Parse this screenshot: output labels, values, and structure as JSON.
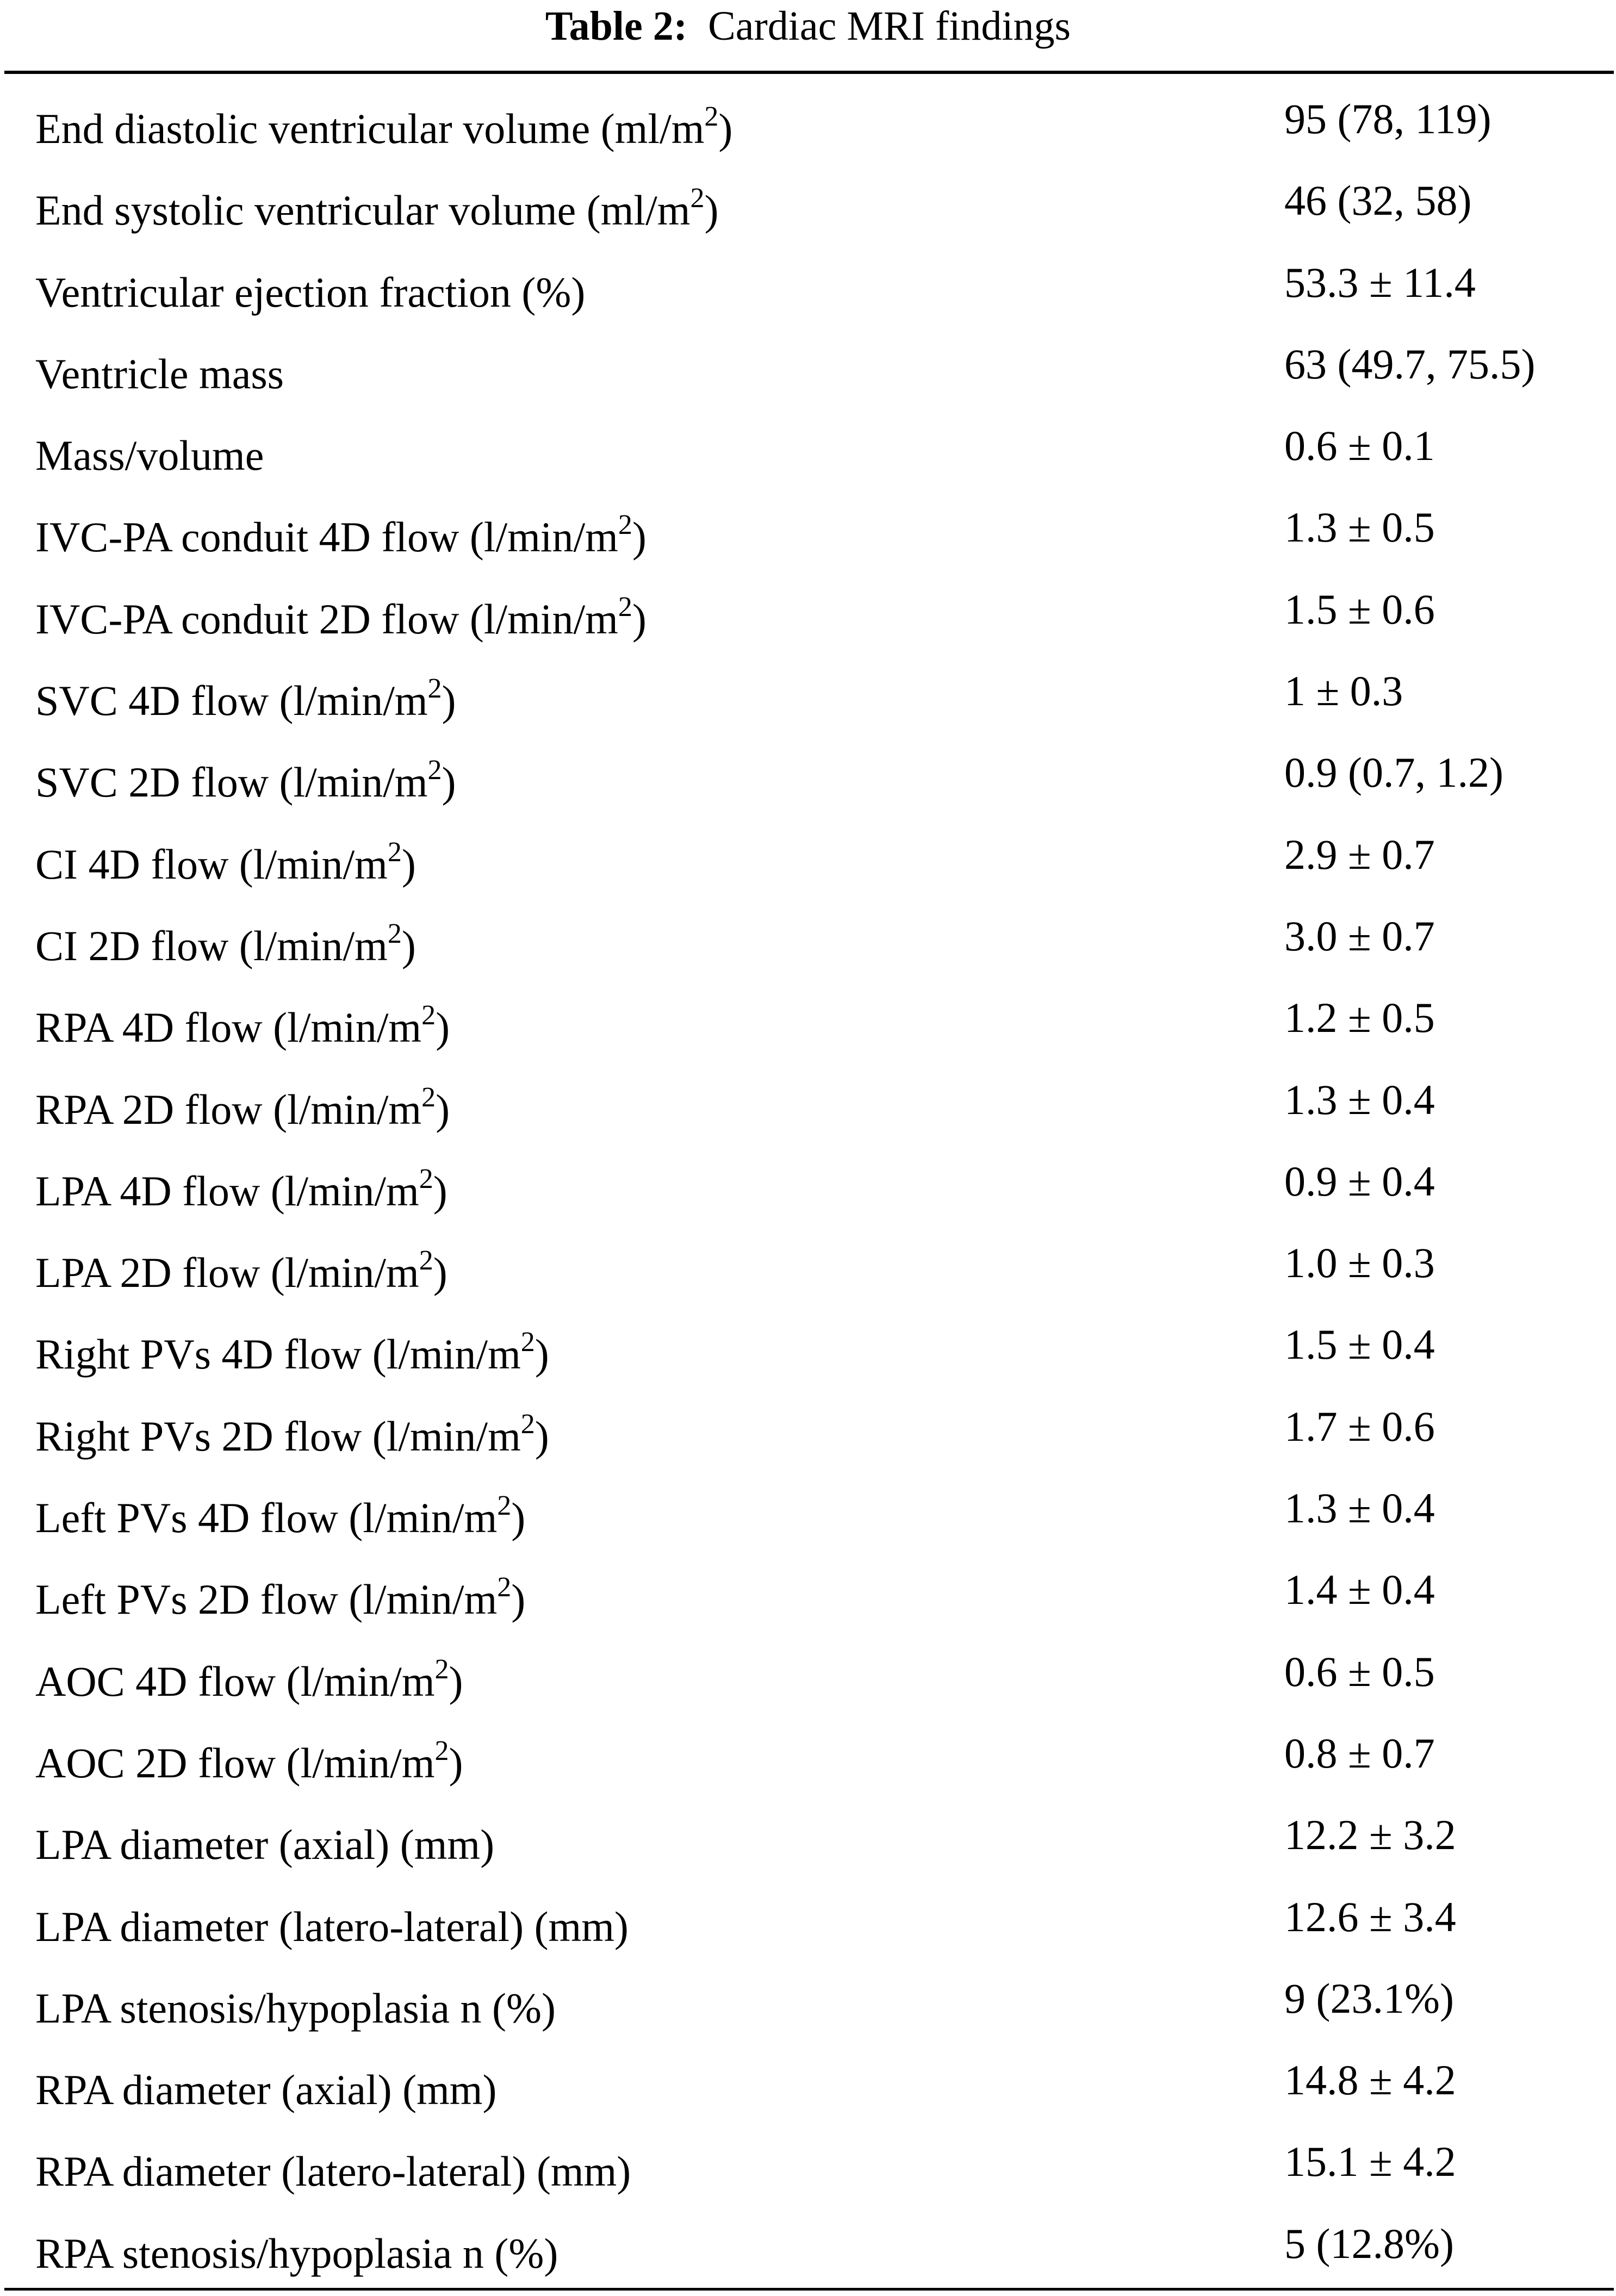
{
  "table": {
    "title_prefix": "Table 2:",
    "title": "Cardiac MRI findings",
    "rows": [
      {
        "label": "End diastolic ventricular volume (ml/m",
        "sup": "2",
        "suffix": ")",
        "value": "95 (78, 119)"
      },
      {
        "label": "End systolic ventricular volume (ml/m",
        "sup": "2",
        "suffix": ")",
        "value": "46 (32, 58)"
      },
      {
        "label": "Ventricular ejection fraction (%)",
        "sup": "",
        "suffix": "",
        "value": "53.3 ± 11.4"
      },
      {
        "label": "Ventricle mass",
        "sup": "",
        "suffix": "",
        "value": "63 (49.7, 75.5)"
      },
      {
        "label": "Mass/volume",
        "sup": "",
        "suffix": "",
        "value": "0.6 ± 0.1"
      },
      {
        "label": "IVC-PA conduit 4D flow (l/min/m",
        "sup": "2",
        "suffix": ")",
        "value": "1.3 ± 0.5"
      },
      {
        "label": "IVC-PA conduit 2D flow (l/min/m",
        "sup": "2",
        "suffix": ")",
        "value": "1.5 ± 0.6"
      },
      {
        "label": "SVC 4D flow (l/min/m",
        "sup": "2",
        "suffix": ")",
        "value": "1 ± 0.3"
      },
      {
        "label": "SVC 2D flow (l/min/m",
        "sup": "2",
        "suffix": ")",
        "value": "0.9 (0.7, 1.2)"
      },
      {
        "label": "CI 4D flow (l/min/m",
        "sup": "2",
        "suffix": ")",
        "value": "2.9 ± 0.7"
      },
      {
        "label": "CI 2D flow (l/min/m",
        "sup": "2",
        "suffix": ")",
        "value": "3.0 ± 0.7"
      },
      {
        "label": "RPA 4D flow (l/min/m",
        "sup": "2",
        "suffix": ")",
        "value": "1.2 ± 0.5"
      },
      {
        "label": "RPA 2D flow (l/min/m",
        "sup": "2",
        "suffix": ")",
        "value": "1.3 ± 0.4"
      },
      {
        "label": "LPA 4D flow (l/min/m",
        "sup": "2",
        "suffix": ")",
        "value": "0.9 ± 0.4"
      },
      {
        "label": "LPA 2D flow (l/min/m",
        "sup": "2",
        "suffix": ")",
        "value": "1.0 ± 0.3"
      },
      {
        "label": "Right PVs 4D flow (l/min/m",
        "sup": "2",
        "suffix": ")",
        "value": "1.5 ± 0.4"
      },
      {
        "label": "Right PVs 2D flow (l/min/m",
        "sup": "2",
        "suffix": ")",
        "value": "1.7 ± 0.6"
      },
      {
        "label": "Left PVs 4D flow (l/min/m",
        "sup": "2",
        "suffix": ")",
        "value": "1.3 ± 0.4"
      },
      {
        "label": "Left PVs 2D flow (l/min/m",
        "sup": "2",
        "suffix": ")",
        "value": "1.4 ± 0.4"
      },
      {
        "label": "AOC 4D flow (l/min/m",
        "sup": "2",
        "suffix": ")",
        "value": "0.6 ± 0.5"
      },
      {
        "label": "AOC 2D flow (l/min/m",
        "sup": "2",
        "suffix": ")",
        "value": "0.8 ± 0.7"
      },
      {
        "label": "LPA diameter (axial) (mm)",
        "sup": "",
        "suffix": "",
        "value": "12.2 ± 3.2"
      },
      {
        "label": "LPA diameter (latero-lateral) (mm)",
        "sup": "",
        "suffix": "",
        "value": "12.6 ± 3.4"
      },
      {
        "label": "LPA stenosis/hypoplasia n (%)",
        "sup": "",
        "suffix": "",
        "value": "9 (23.1%)"
      },
      {
        "label": "RPA diameter (axial) (mm)",
        "sup": "",
        "suffix": "",
        "value": "14.8 ± 4.2"
      },
      {
        "label": "RPA diameter (latero-lateral) (mm)",
        "sup": "",
        "suffix": "",
        "value": "15.1 ± 4.2"
      },
      {
        "label": "RPA stenosis/hypoplasia n (%)",
        "sup": "",
        "suffix": "",
        "value": "5 (12.8%)"
      }
    ]
  }
}
